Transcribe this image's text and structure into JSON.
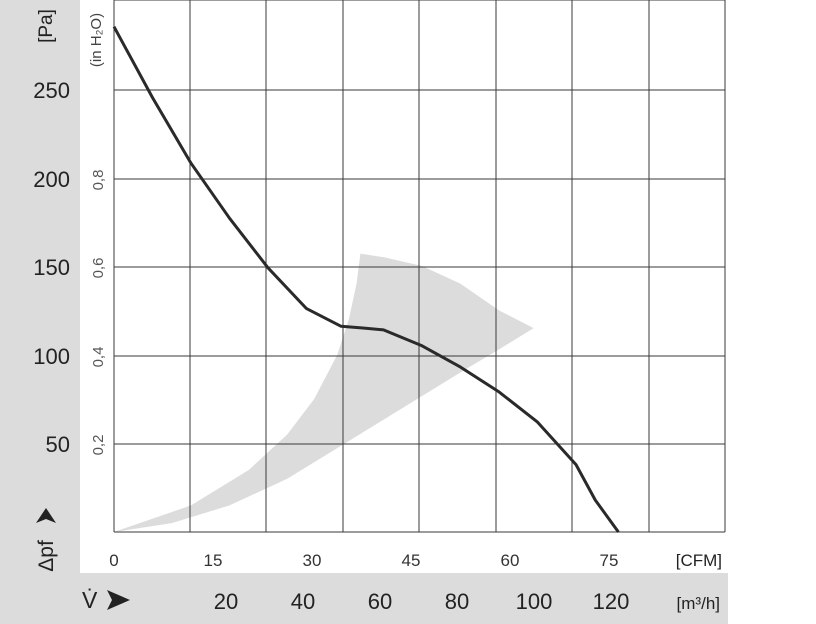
{
  "chart_data": {
    "type": "line",
    "y_axis_label": "Δpf",
    "y_unit": "[Pa]",
    "y_secondary_unit": "(in H₂O)",
    "y_ticks": [
      "250",
      "200",
      "150",
      "100",
      "50"
    ],
    "y_secondary_ticks": [
      "0,8",
      "0,6",
      "0,4",
      "0,2"
    ],
    "x_axis_label": "V̇",
    "x_unit_cfm": "[CFM]",
    "x_unit_m3h": "[m³/h]",
    "x_ticks_cfm": [
      "0",
      "15",
      "30",
      "45",
      "60",
      "75"
    ],
    "x_ticks_m3h": [
      "20",
      "40",
      "60",
      "80",
      "100",
      "120"
    ],
    "xlim_m3h": [
      0,
      140
    ],
    "ylim_pa": [
      0,
      300
    ],
    "grid": true,
    "series": [
      {
        "x_m3h": [
          0,
          10,
          20,
          30,
          40,
          50,
          59,
          65,
          70,
          80,
          90,
          100,
          110,
          120,
          125,
          131
        ],
        "y_pa": [
          285,
          245,
          208,
          177,
          149,
          126,
          116,
          115,
          114,
          105,
          93,
          79,
          62,
          38,
          18,
          0
        ]
      }
    ],
    "operating_range": {
      "color": "#dcdcdc",
      "polygon_m3h_pa": [
        [
          0,
          0
        ],
        [
          15,
          5
        ],
        [
          30,
          15
        ],
        [
          45,
          30
        ],
        [
          60,
          50
        ],
        [
          75,
          70
        ],
        [
          90,
          90
        ],
        [
          100,
          103
        ],
        [
          109,
          115
        ],
        [
          100,
          125
        ],
        [
          90,
          140
        ],
        [
          80,
          150
        ],
        [
          70,
          155
        ],
        [
          64,
          157
        ],
        [
          63,
          140
        ],
        [
          61,
          120
        ],
        [
          58,
          100
        ],
        [
          52,
          75
        ],
        [
          45,
          55
        ],
        [
          35,
          35
        ],
        [
          20,
          15
        ],
        [
          0,
          0
        ]
      ]
    },
    "colors": {
      "curve": "#2a2a2a",
      "grid": "#3a3a3a",
      "band": "#dcdcdc"
    }
  }
}
